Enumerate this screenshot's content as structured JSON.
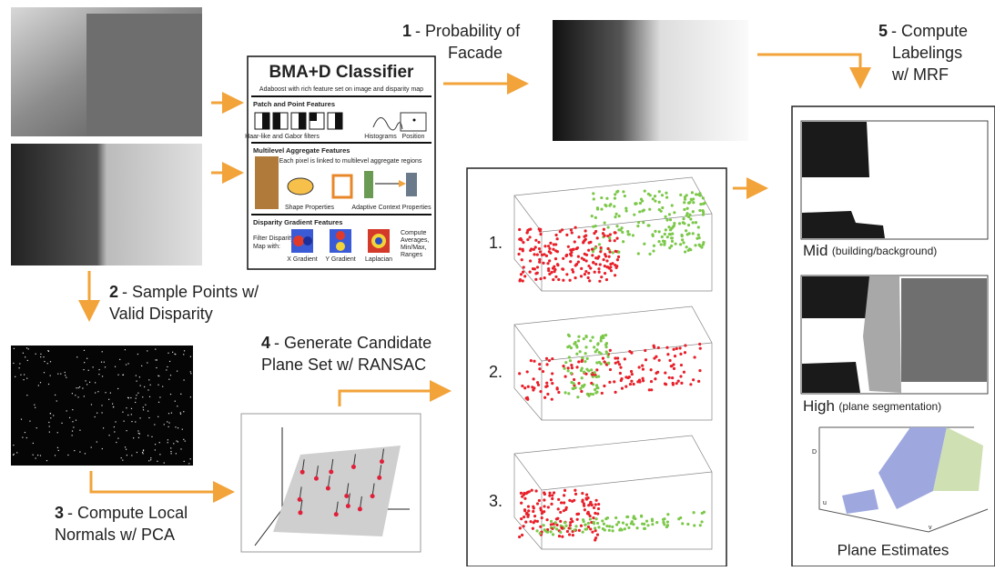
{
  "classifier": {
    "title": "BMA+D Classifier",
    "subtitle": "Adaboost with rich feature set on image and disparity map",
    "patch": {
      "heading": "Patch and Point Features",
      "items": [
        "Haar-like and Gabor filters",
        "Histograms",
        "Position"
      ]
    },
    "aggregate": {
      "heading": "Multilevel Aggregate Features",
      "note": "Each pixel is linked to multilevel aggregate regions",
      "items": [
        "Shape Properties",
        "Adaptive Context Properties"
      ]
    },
    "gradient": {
      "heading": "Disparity Gradient Features",
      "filter": [
        "Filter Disparity",
        "Map with:"
      ],
      "items": [
        "X Gradient",
        "Y Gradient",
        "Laplacian"
      ],
      "compute": [
        "Compute",
        "Averages,",
        "Min/Max,",
        "Ranges"
      ]
    }
  },
  "steps": [
    {
      "number": "1",
      "lines": [
        "- Probability of",
        "Facade"
      ]
    },
    {
      "number": "2",
      "lines": [
        "- Sample Points w/",
        "Valid Disparity"
      ]
    },
    {
      "number": "3",
      "lines": [
        "- Compute Local",
        "Normals w/ PCA"
      ]
    },
    {
      "number": "4",
      "lines": [
        "- Generate Candidate",
        "Plane Set w/ RANSAC"
      ]
    },
    {
      "number": "5",
      "lines": [
        "- Compute",
        "Labelings",
        "w/ MRF"
      ]
    }
  ],
  "candidates": [
    "1.",
    "2.",
    "3."
  ],
  "results": {
    "mid": {
      "label": "Mid",
      "detail": "(building/background)"
    },
    "high": {
      "label": "High",
      "detail": "(plane segmentation)"
    },
    "planes": {
      "label": "Plane Estimates",
      "axes": [
        "D",
        "u",
        "v"
      ]
    }
  }
}
